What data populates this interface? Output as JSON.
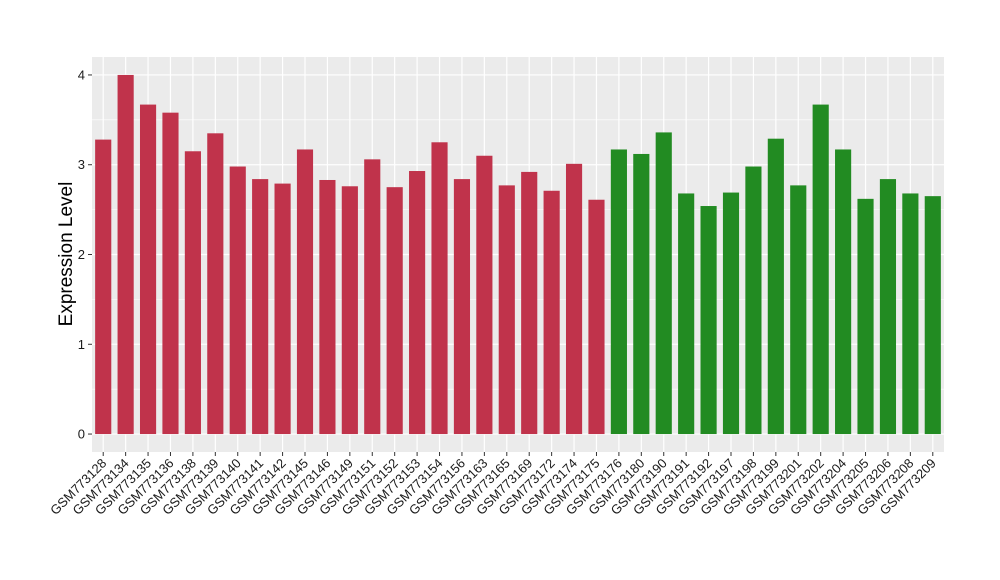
{
  "chart_data": {
    "type": "bar",
    "title": "",
    "xlabel": "",
    "ylabel": "Expression Level",
    "ylim": [
      -0.2,
      4.2
    ],
    "yticks": [
      0,
      1,
      2,
      3,
      4
    ],
    "grid": true,
    "legend": "none",
    "panel_background": "#ebebeb",
    "grid_color": "#ffffff",
    "categories": [
      "GSM773128",
      "GSM773134",
      "GSM773135",
      "GSM773136",
      "GSM773138",
      "GSM773139",
      "GSM773140",
      "GSM773141",
      "GSM773142",
      "GSM773145",
      "GSM773146",
      "GSM773149",
      "GSM773151",
      "GSM773152",
      "GSM773153",
      "GSM773154",
      "GSM773156",
      "GSM773163",
      "GSM773165",
      "GSM773169",
      "GSM773172",
      "GSM773174",
      "GSM773175",
      "GSM773176",
      "GSM773180",
      "GSM773190",
      "GSM773191",
      "GSM773192",
      "GSM773197",
      "GSM773198",
      "GSM773199",
      "GSM773201",
      "GSM773202",
      "GSM773204",
      "GSM773205",
      "GSM773206",
      "GSM773208",
      "GSM773209"
    ],
    "values": [
      3.28,
      4.0,
      3.67,
      3.58,
      3.15,
      3.35,
      2.98,
      2.84,
      2.79,
      3.17,
      2.83,
      2.76,
      3.06,
      2.75,
      2.93,
      3.25,
      2.84,
      3.1,
      2.77,
      2.92,
      2.71,
      3.01,
      2.61,
      3.17,
      3.12,
      3.36,
      2.68,
      2.54,
      2.69,
      2.98,
      3.29,
      2.77,
      3.67,
      3.17,
      2.62,
      2.84,
      2.68,
      2.65
    ],
    "bar_colors": [
      "#c0334b",
      "#c0334b",
      "#c0334b",
      "#c0334b",
      "#c0334b",
      "#c0334b",
      "#c0334b",
      "#c0334b",
      "#c0334b",
      "#c0334b",
      "#c0334b",
      "#c0334b",
      "#c0334b",
      "#c0334b",
      "#c0334b",
      "#c0334b",
      "#c0334b",
      "#c0334b",
      "#c0334b",
      "#c0334b",
      "#c0334b",
      "#c0334b",
      "#c0334b",
      "#228b22",
      "#228b22",
      "#228b22",
      "#228b22",
      "#228b22",
      "#228b22",
      "#228b22",
      "#228b22",
      "#228b22",
      "#228b22",
      "#228b22",
      "#228b22",
      "#228b22",
      "#228b22",
      "#228b22"
    ]
  }
}
